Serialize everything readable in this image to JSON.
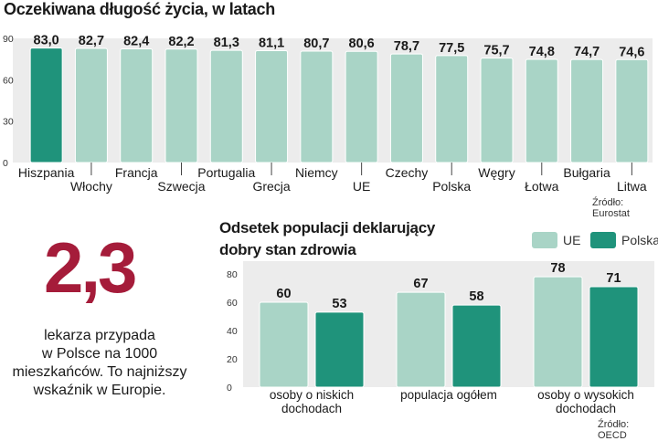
{
  "chart_data": [
    {
      "type": "bar",
      "title": "Oczekiwana długość życia, w latach",
      "source": "Źródło: Eurostat",
      "categories": [
        "Hiszpania",
        "Włochy",
        "Francja",
        "Szwecja",
        "Portugalia",
        "Grecja",
        "Niemcy",
        "UE",
        "Czechy",
        "Polska",
        "Węgry",
        "Łotwa",
        "Bułgaria",
        "Litwa"
      ],
      "value_labels": [
        "83,0",
        "82,7",
        "82,4",
        "82,2",
        "81,3",
        "81,1",
        "80,7",
        "80,6",
        "78,7",
        "77,5",
        "75,7",
        "74,8",
        "74,7",
        "74,6"
      ],
      "values": [
        83.0,
        82.7,
        82.4,
        82.2,
        81.3,
        81.1,
        80.7,
        80.6,
        78.7,
        77.5,
        75.7,
        74.8,
        74.7,
        74.6
      ],
      "highlight": "Hiszpania",
      "ylim": [
        0,
        90
      ],
      "yticks": [
        0,
        30,
        60,
        90
      ],
      "xlabel": "",
      "ylabel": ""
    },
    {
      "type": "bar",
      "title_lines": [
        "Odsetek populacji deklarujący",
        "dobry stan zdrowia"
      ],
      "source": "Źródło: OECD",
      "category_lines": [
        [
          "osoby o niskich",
          "dochodach"
        ],
        [
          "populacja ogółem"
        ],
        [
          "osoby o wysokich",
          "dochodach"
        ]
      ],
      "series": [
        {
          "name": "UE",
          "values": [
            60,
            67,
            78
          ],
          "color": "#a9d4c6"
        },
        {
          "name": "Polska",
          "values": [
            53,
            58,
            71
          ],
          "color": "#1f937b"
        }
      ],
      "ylim": [
        0,
        80
      ],
      "yticks": [
        0,
        20,
        40,
        60,
        80
      ],
      "xlabel": "",
      "ylabel": ""
    }
  ],
  "infobox": {
    "big_number": "2,3",
    "text_lines": [
      "lekarza przypada",
      "w Polsce na 1000",
      "mieszkańców. To najniższy",
      "wskaźnik w Europie."
    ]
  },
  "colors": {
    "light_bar": "#a9d4c6",
    "dark_bar": "#1f937b",
    "accent_red": "#a51c3a"
  }
}
